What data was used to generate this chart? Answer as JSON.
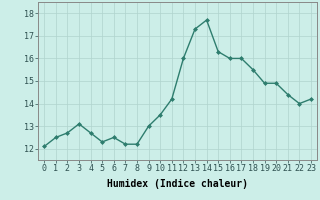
{
  "x": [
    0,
    1,
    2,
    3,
    4,
    5,
    6,
    7,
    8,
    9,
    10,
    11,
    12,
    13,
    14,
    15,
    16,
    17,
    18,
    19,
    20,
    21,
    22,
    23
  ],
  "y": [
    12.1,
    12.5,
    12.7,
    13.1,
    12.7,
    12.3,
    12.5,
    12.2,
    12.2,
    13.0,
    13.5,
    14.2,
    16.0,
    17.3,
    17.7,
    16.3,
    16.0,
    16.0,
    15.5,
    14.9,
    14.9,
    14.4,
    14.0,
    14.2
  ],
  "line_color": "#2e7d6e",
  "marker": "D",
  "marker_size": 2.0,
  "bg_color": "#cceee8",
  "grid_color": "#b0d4ce",
  "xlabel": "Humidex (Indice chaleur)",
  "ylim": [
    11.5,
    18.5
  ],
  "xlim": [
    -0.5,
    23.5
  ],
  "yticks": [
    12,
    13,
    14,
    15,
    16,
    17,
    18
  ],
  "xticks": [
    0,
    1,
    2,
    3,
    4,
    5,
    6,
    7,
    8,
    9,
    10,
    11,
    12,
    13,
    14,
    15,
    16,
    17,
    18,
    19,
    20,
    21,
    22,
    23
  ],
  "xlabel_fontsize": 7.0,
  "tick_fontsize": 6.0,
  "line_width": 1.0
}
